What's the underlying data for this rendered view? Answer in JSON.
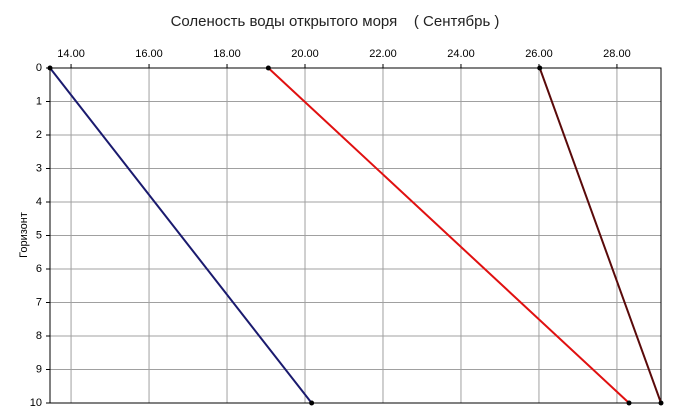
{
  "chart_data": {
    "type": "line",
    "title": "Соленость воды открытого моря    ( Сентябрь )",
    "y_label": "Горизонт",
    "x_axis_position": "top",
    "invert_y": true,
    "grid": true,
    "xlim": [
      13.46,
      29.13
    ],
    "xticks": [
      {
        "value": 14,
        "label": "14.00"
      },
      {
        "value": 16,
        "label": "16.00"
      },
      {
        "value": 18,
        "label": "18.00"
      },
      {
        "value": 20,
        "label": "20.00"
      },
      {
        "value": 22,
        "label": "22.00"
      },
      {
        "value": 24,
        "label": "24.00"
      },
      {
        "value": 26,
        "label": "26.00"
      },
      {
        "value": 28,
        "label": "28.00"
      }
    ],
    "ylim": [
      0,
      10
    ],
    "yticks": [
      0,
      1,
      2,
      3,
      4,
      5,
      6,
      7,
      8,
      9,
      10
    ],
    "series": [
      {
        "color": "#1a1a6e",
        "x": [
          13.46,
          20.17
        ],
        "values": [
          0,
          10
        ]
      },
      {
        "color": "#e01010",
        "x": [
          19.06,
          28.31
        ],
        "values": [
          0,
          10
        ]
      },
      {
        "color": "#5a0a0a",
        "x": [
          26.02,
          29.13
        ],
        "values": [
          0,
          10
        ]
      }
    ]
  }
}
